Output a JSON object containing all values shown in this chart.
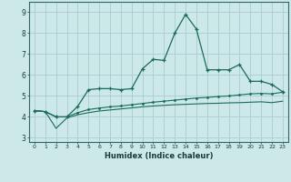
{
  "xlabel": "Humidex (Indice chaleur)",
  "background_color": "#cce8e8",
  "grid_color": "#aacccc",
  "line_color": "#1a6b5a",
  "xlim": [
    -0.5,
    23.5
  ],
  "ylim": [
    2.8,
    9.5
  ],
  "yticks": [
    3,
    4,
    5,
    6,
    7,
    8,
    9
  ],
  "xticks": [
    0,
    1,
    2,
    3,
    4,
    5,
    6,
    7,
    8,
    9,
    10,
    11,
    12,
    13,
    14,
    15,
    16,
    17,
    18,
    19,
    20,
    21,
    22,
    23
  ],
  "series1_x": [
    0,
    1,
    2,
    3,
    4,
    5,
    6,
    7,
    8,
    9,
    10,
    11,
    12,
    13,
    14,
    15,
    16,
    17,
    18,
    19,
    20,
    21,
    22,
    23
  ],
  "series1_y": [
    4.3,
    4.25,
    4.0,
    4.0,
    4.5,
    5.3,
    5.35,
    5.35,
    5.3,
    5.35,
    6.3,
    6.75,
    6.7,
    8.0,
    8.9,
    8.2,
    6.25,
    6.25,
    6.25,
    6.5,
    5.7,
    5.7,
    5.55,
    5.2
  ],
  "series2_x": [
    0,
    1,
    2,
    3,
    4,
    5,
    6,
    7,
    8,
    9,
    10,
    11,
    12,
    13,
    14,
    15,
    16,
    17,
    18,
    19,
    20,
    21,
    22,
    23
  ],
  "series2_y": [
    4.3,
    4.25,
    4.0,
    4.0,
    4.2,
    4.35,
    4.42,
    4.48,
    4.52,
    4.58,
    4.64,
    4.7,
    4.75,
    4.8,
    4.85,
    4.9,
    4.93,
    4.97,
    5.0,
    5.05,
    5.1,
    5.12,
    5.1,
    5.18
  ],
  "series3_x": [
    0,
    1,
    2,
    3,
    4,
    5,
    6,
    7,
    8,
    9,
    10,
    11,
    12,
    13,
    14,
    15,
    16,
    17,
    18,
    19,
    20,
    21,
    22,
    23
  ],
  "series3_y": [
    4.3,
    4.25,
    3.45,
    3.95,
    4.1,
    4.2,
    4.28,
    4.33,
    4.38,
    4.43,
    4.48,
    4.52,
    4.55,
    4.58,
    4.6,
    4.62,
    4.64,
    4.65,
    4.67,
    4.68,
    4.7,
    4.72,
    4.68,
    4.75
  ]
}
